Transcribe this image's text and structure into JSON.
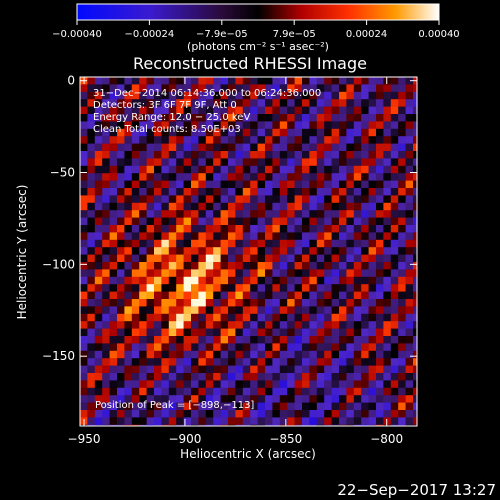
{
  "chart_data": {
    "type": "heatmap",
    "title": "Reconstructed RHESSI Image",
    "xlabel": "Heliocentric X (arcsec)",
    "ylabel": "Heliocentric Y (arcsec)",
    "xlim": [
      -952,
      -785
    ],
    "ylim": [
      -188,
      2
    ],
    "x_ticks": [
      {
        "value": -950,
        "label": "−950"
      },
      {
        "value": -900,
        "label": "−900"
      },
      {
        "value": -850,
        "label": "−850"
      },
      {
        "value": -800,
        "label": "−800"
      }
    ],
    "y_ticks": [
      {
        "value": 0,
        "label": "0"
      },
      {
        "value": -50,
        "label": "−50"
      },
      {
        "value": -100,
        "label": "−100"
      },
      {
        "value": -150,
        "label": "−150"
      }
    ],
    "colorbar": {
      "min": -0.0004,
      "max": 0.0004,
      "tick_labels": [
        "−0.00040",
        "−0.00024",
        "−7.9e−05",
        "7.9e−05",
        "0.00024",
        "0.00040"
      ],
      "unit_label": "(photons cm⁻² s⁻¹ asec⁻²)"
    },
    "annotations": [
      "31−Dec−2014 06:14:36.000 to 06:24:36.000",
      "Detectors: 3F 6F 7F 9F, Att 0",
      "Energy Range: 12.0 − 25.0 keV",
      "Clean    Total counts: 8.50E+03"
    ],
    "peak_label": "Position of Peak = [−898,−113]",
    "peak": {
      "x": -898,
      "y": -113
    }
  },
  "footer": {
    "date": "22−Sep−2017 13:27"
  }
}
